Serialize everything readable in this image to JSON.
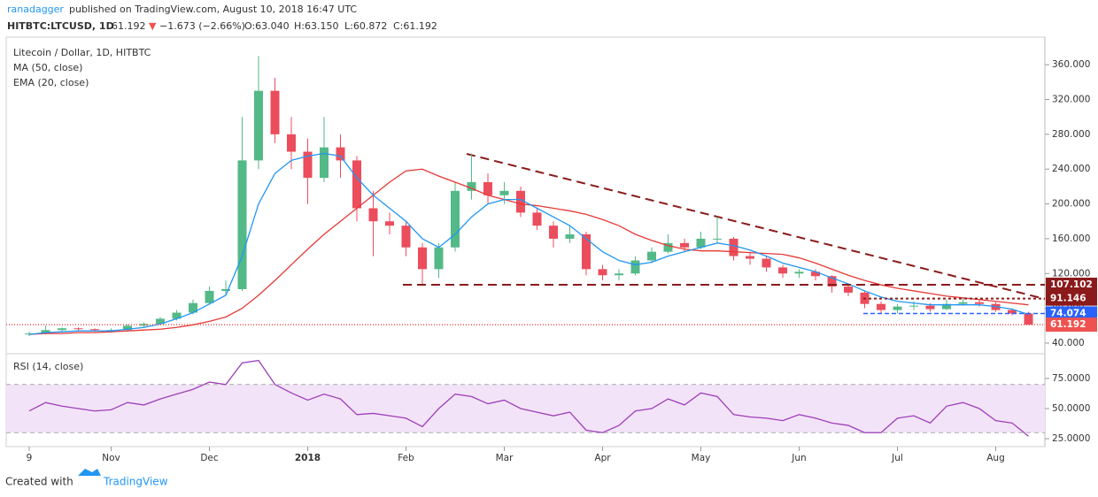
{
  "header": {
    "author": "ranadagger",
    "published": "published on TradingView.com, August 10, 2018 16:47 UTC",
    "symbol": "HITBTC:LTCUSD, 1D",
    "last": "61.192",
    "arrow": "▼",
    "change": "−1.673 (−2.66%)",
    "ohlc": [
      "O:63.040",
      "H:63.150",
      "L:60.872",
      "C:61.192"
    ]
  },
  "footer": {
    "created": "Created with",
    "brand": "TradingView"
  },
  "chart_data": [
    {
      "type": "candlestick",
      "title": "Litecoin / Dollar, 1D, HITBTC",
      "categories": [
        "9",
        null,
        null,
        null,
        null,
        "Nov",
        null,
        null,
        null,
        null,
        null,
        "Dec",
        null,
        null,
        null,
        null,
        null,
        "2018",
        null,
        null,
        null,
        null,
        null,
        "Feb",
        null,
        null,
        null,
        null,
        null,
        "Mar",
        null,
        null,
        null,
        null,
        null,
        "Apr",
        null,
        null,
        null,
        null,
        null,
        "May",
        null,
        null,
        null,
        null,
        null,
        "Jun",
        null,
        null,
        null,
        null,
        null,
        "Jul",
        null,
        null,
        null,
        null,
        null,
        "Aug",
        null,
        null
      ],
      "open": [
        50,
        51,
        55,
        57,
        56,
        55,
        55,
        60,
        62,
        68,
        75,
        86,
        100,
        102,
        250,
        330,
        280,
        260,
        230,
        265,
        250,
        195,
        180,
        175,
        150,
        125,
        150,
        215,
        225,
        210,
        215,
        190,
        175,
        160,
        165,
        125,
        118,
        120,
        135,
        145,
        155,
        150,
        160,
        160,
        140,
        137,
        127,
        120,
        122,
        117,
        105,
        98,
        85,
        78,
        82,
        83,
        79,
        85,
        87,
        85,
        78,
        74
      ],
      "high": [
        53,
        60,
        58,
        58,
        57,
        57,
        62,
        64,
        70,
        78,
        90,
        105,
        112,
        300,
        370,
        345,
        300,
        275,
        300,
        280,
        255,
        215,
        190,
        180,
        155,
        155,
        225,
        258,
        235,
        225,
        220,
        195,
        180,
        175,
        168,
        130,
        125,
        140,
        150,
        165,
        160,
        168,
        185,
        162,
        145,
        140,
        130,
        125,
        125,
        118,
        108,
        100,
        88,
        85,
        88,
        86,
        90,
        92,
        90,
        87,
        80,
        76
      ],
      "low": [
        48,
        50,
        53,
        54,
        53,
        52,
        54,
        58,
        61,
        66,
        73,
        84,
        96,
        100,
        240,
        270,
        240,
        200,
        225,
        230,
        180,
        140,
        165,
        140,
        108,
        115,
        145,
        205,
        200,
        200,
        185,
        170,
        150,
        155,
        118,
        112,
        112,
        118,
        132,
        143,
        145,
        148,
        155,
        135,
        130,
        122,
        115,
        115,
        112,
        98,
        94,
        80,
        74,
        74,
        78,
        76,
        78,
        83,
        82,
        76,
        72,
        60.872
      ],
      "close": [
        51,
        55,
        57,
        56,
        55,
        55,
        60,
        62,
        68,
        75,
        86,
        100,
        102,
        250,
        330,
        280,
        260,
        230,
        265,
        250,
        195,
        180,
        175,
        150,
        125,
        150,
        215,
        225,
        210,
        215,
        190,
        175,
        160,
        165,
        125,
        118,
        120,
        135,
        145,
        155,
        150,
        160,
        160,
        140,
        137,
        127,
        120,
        122,
        117,
        105,
        98,
        85,
        78,
        82,
        83,
        79,
        85,
        87,
        85,
        78,
        74,
        61.192
      ],
      "up_color": "#53b987",
      "down_color": "#eb4d5c",
      "series": [
        {
          "name": "MA (50, close)",
          "color": "#e53935",
          "values": [
            50,
            51,
            51,
            52,
            52,
            53,
            54,
            55,
            56,
            58,
            61,
            65,
            70,
            80,
            95,
            112,
            130,
            148,
            165,
            180,
            195,
            210,
            225,
            238,
            240,
            232,
            225,
            218,
            210,
            205,
            200,
            198,
            195,
            192,
            188,
            182,
            175,
            165,
            158,
            152,
            148,
            146,
            146,
            145,
            144,
            143,
            142,
            138,
            132,
            125,
            118,
            112,
            107,
            103,
            100,
            97,
            94,
            92,
            90,
            88,
            86,
            84
          ]
        },
        {
          "name": "EMA (20, close)",
          "color": "#2196f3",
          "values": [
            50,
            52,
            53,
            54,
            54,
            54,
            56,
            58,
            62,
            68,
            75,
            85,
            95,
            140,
            200,
            235,
            250,
            255,
            258,
            255,
            230,
            210,
            195,
            180,
            160,
            150,
            165,
            185,
            200,
            205,
            205,
            195,
            185,
            175,
            160,
            145,
            135,
            130,
            133,
            140,
            145,
            150,
            155,
            152,
            147,
            140,
            132,
            127,
            122,
            115,
            108,
            100,
            93,
            88,
            86,
            84,
            84,
            84,
            84,
            82,
            79,
            73
          ]
        }
      ],
      "price_lines": [
        {
          "value": 107.102,
          "color": "#8b1a1a"
        },
        {
          "value": 91.146,
          "color": "#8b1a1a"
        },
        {
          "value": 74.074,
          "color": "#2962ff"
        },
        {
          "value": 61.192,
          "color": "#ef5350"
        }
      ],
      "ylim": [
        29.8,
        391.7
      ],
      "yticks": [
        {
          "value": 40,
          "label": "40.000"
        },
        {
          "value": 80,
          "label": "80.000"
        },
        {
          "value": 120,
          "label": "120.000"
        },
        {
          "value": 160,
          "label": "160.000"
        },
        {
          "value": 200,
          "label": "200.000"
        },
        {
          "value": 240,
          "label": "240.000"
        },
        {
          "value": 280,
          "label": "280.000"
        },
        {
          "value": 320,
          "label": "320.000"
        },
        {
          "value": 360,
          "label": "360.000"
        }
      ]
    },
    {
      "type": "line",
      "title": "RSI (14, close)",
      "color": "#9c3fb8",
      "band": [
        30,
        70
      ],
      "band_color": "#f3e3f8",
      "values": [
        48,
        55,
        52,
        50,
        48,
        49,
        55,
        53,
        58,
        62,
        66,
        72,
        70,
        88,
        90,
        70,
        63,
        57,
        62,
        58,
        45,
        46,
        44,
        42,
        35,
        50,
        62,
        60,
        54,
        57,
        50,
        47,
        44,
        47,
        32,
        30,
        36,
        48,
        50,
        58,
        53,
        63,
        60,
        45,
        43,
        42,
        40,
        45,
        42,
        38,
        36,
        30,
        30,
        42,
        44,
        38,
        52,
        55,
        50,
        40,
        38,
        27
      ],
      "ylim": [
        18.4,
        94.1
      ],
      "yticks": [
        {
          "value": 25,
          "label": "25.0000"
        },
        {
          "value": 50,
          "label": "50.0000"
        },
        {
          "value": 75,
          "label": "75.0000"
        }
      ]
    }
  ]
}
